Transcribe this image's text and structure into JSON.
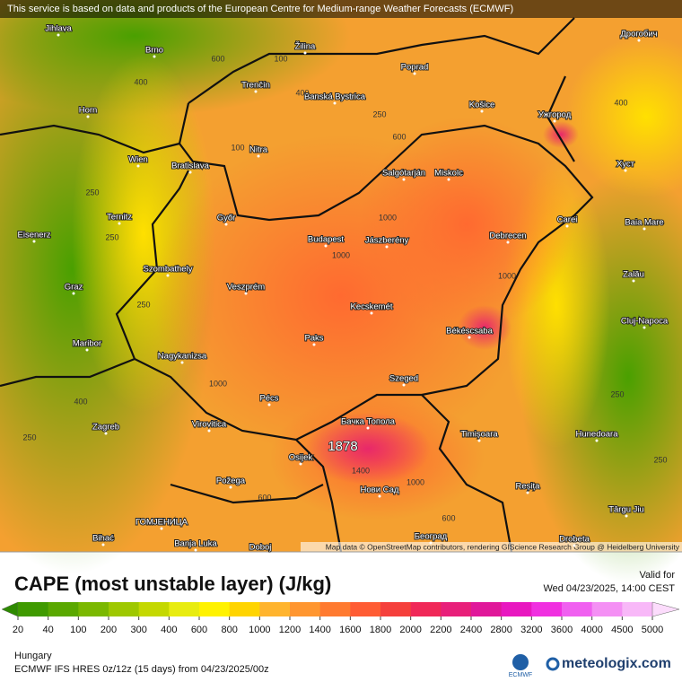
{
  "header": {
    "attribution": "This service is based on data and products of the European Centre for Medium-range Weather Forecasts (ECMWF)"
  },
  "map": {
    "cities": [
      "Jihlava",
      "Brno",
      "Žilina",
      "Poprad",
      "Дрогобич",
      "Trenčín",
      "Banská Bystrica",
      "Košice",
      "Ужгород",
      "Horn",
      "Nitra",
      "Wien",
      "Bratislava",
      "Salgótarján",
      "Miskolc",
      "Хуст",
      "Ternitz",
      "Győr",
      "Carei",
      "Baia Mare",
      "Eisenerz",
      "Budapest",
      "Jászberény",
      "Debrecen",
      "Szombathely",
      "Zalău",
      "Graz",
      "Veszprém",
      "Kecskemét",
      "Cluj-Napoca",
      "Maribor",
      "Békéscsaba",
      "Paks",
      "Nagykanizsa",
      "Szeged",
      "Zagreb",
      "Pécs",
      "Virovitica",
      "Бачка Топола",
      "Timișoara",
      "Hunedoara",
      "Osijek",
      "Нови Сад",
      "Požega",
      "Reșița",
      "Târgu Jiu",
      "ГОМЈЕНИЦА",
      "Bihać",
      "Banja Luka",
      "Doboj",
      "Београд",
      "Drobeta"
    ],
    "contour_labels": [
      400,
      600,
      100,
      400,
      250,
      600,
      100,
      250,
      400,
      250,
      1000,
      250,
      1000,
      1000,
      600,
      400,
      1000,
      250,
      1400,
      1000,
      600,
      250,
      250
    ],
    "max_label": 1878,
    "credit": "Map data © OpenStreetMap contributors, rendering GIScience Research Group @ Heidelberg University"
  },
  "footer": {
    "title": "CAPE (most unstable layer) (J/kg)",
    "valid_label": "Valid for",
    "valid_time": "Wed 04/23/2025, 14:00 CEST",
    "region": "Hungary",
    "model": "ECMWF IFS HRES 0z/12z (15 days) from 04/23/2025/00z",
    "ecmwf_logo": "ECMWF",
    "brand": "meteologix.com"
  },
  "colorbar": {
    "ticks": [
      20,
      40,
      100,
      200,
      300,
      400,
      600,
      800,
      1000,
      1200,
      1400,
      1600,
      1800,
      2000,
      2200,
      2400,
      2800,
      3200,
      3600,
      4000,
      4500,
      5000
    ],
    "colors": [
      "#2e8a00",
      "#3f9a00",
      "#5aa800",
      "#7ab800",
      "#9ec800",
      "#c4d800",
      "#e8ec10",
      "#fff200",
      "#ffd400",
      "#ffb42e",
      "#ff9630",
      "#ff7a30",
      "#ff5c34",
      "#f5403c",
      "#f02858",
      "#e8207a",
      "#e0189a",
      "#e818c0",
      "#f030e0",
      "#f060f0",
      "#f490f4",
      "#f8b8f8",
      "#fcdcfc"
    ]
  }
}
